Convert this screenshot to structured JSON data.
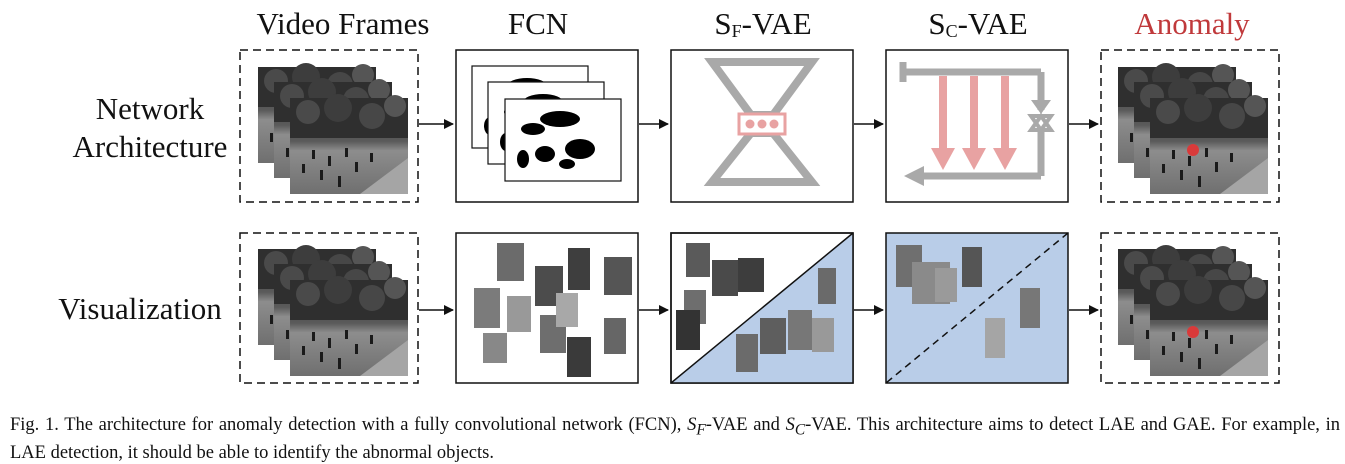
{
  "columns": {
    "video_frames": "Video Frames",
    "fcn": "FCN",
    "sf_vae_main": "S",
    "sf_vae_sub": "F",
    "sf_vae_suffix": "-VAE",
    "sc_vae_main": "S",
    "sc_vae_sub": "C",
    "sc_vae_suffix": "-VAE",
    "anomaly": "Anomaly"
  },
  "rows": {
    "network_line1": "Network",
    "network_line2": "Architecture",
    "visualization": "Visualization"
  },
  "caption": {
    "prefix": "Fig. 1.   The architecture for anomaly detection with a fully convolutional network (FCN), ",
    "sf_var": "S",
    "sf_sub": "F",
    "mid": "-VAE and ",
    "sc_var": "S",
    "sc_sub": "C",
    "suffix": "-VAE. This architecture aims to detect LAE and GAE. For example, in LAE detection, it should be able to identify the abnormal objects."
  },
  "colors": {
    "anomaly_title": "#c0393b",
    "vae_gray": "#a9a9a9",
    "vae_red": "#e8a2a2",
    "blue_fill": "#b9cde8",
    "anomaly_marker": "#d93a3a"
  }
}
